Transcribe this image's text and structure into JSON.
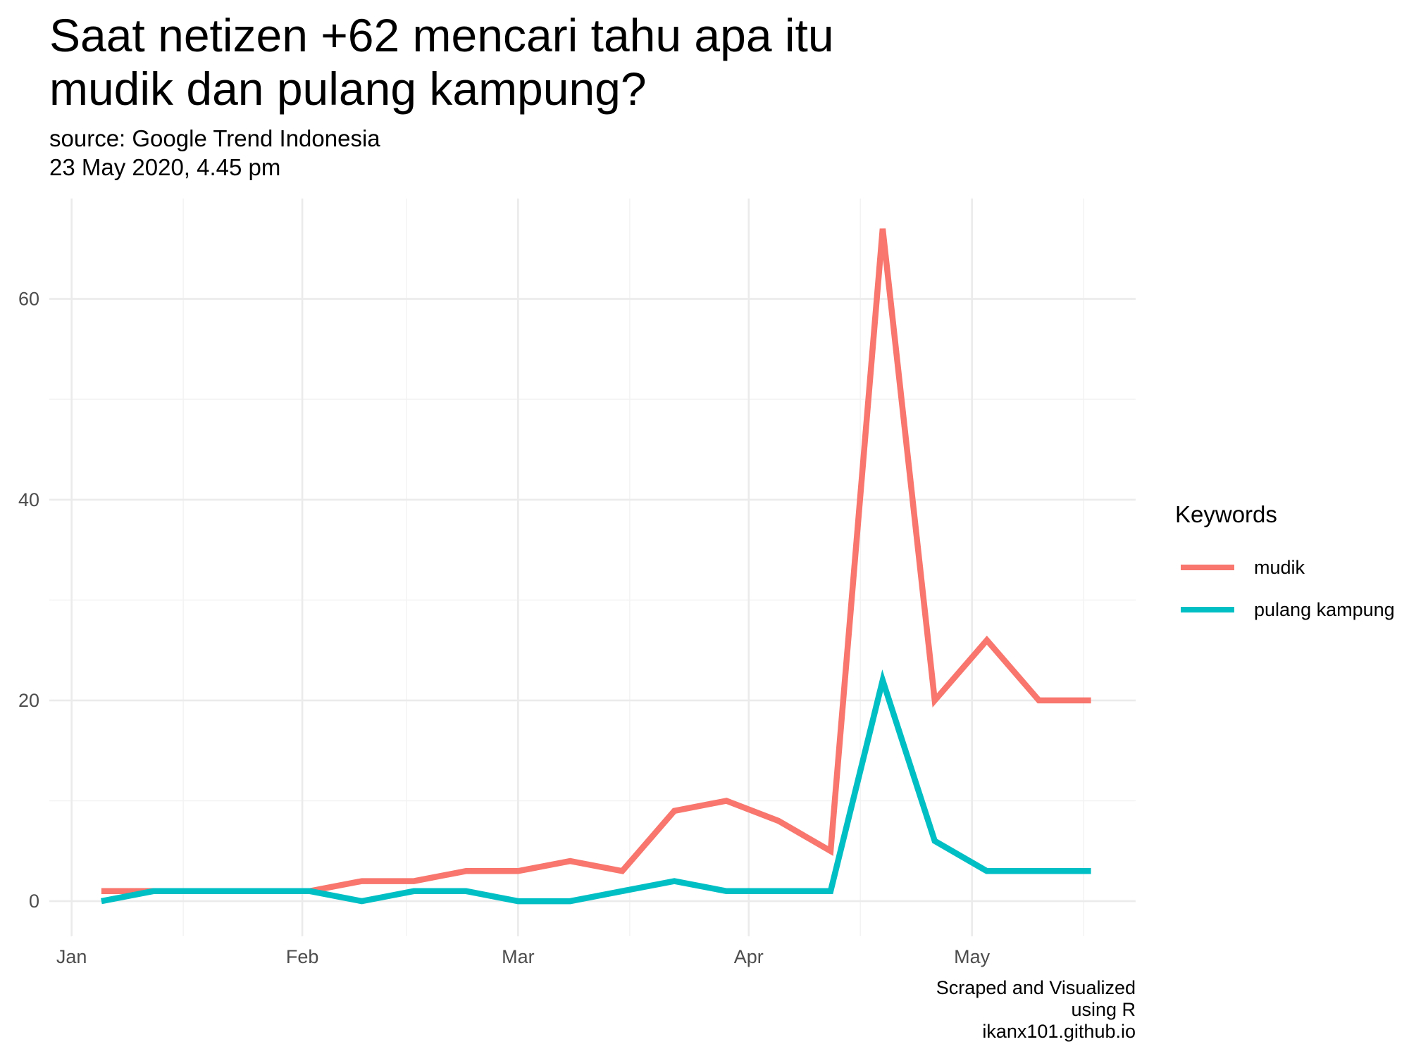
{
  "chart_data": {
    "type": "line",
    "title_lines": [
      "Saat netizen +62 mencari tahu apa itu",
      "mudik dan pulang kampung?"
    ],
    "subtitle_lines": [
      "source: Google Trend Indonesia",
      "23 May 2020, 4.45 pm"
    ],
    "caption_lines": [
      "Scraped and Visualized",
      "using R",
      "ikanx101.github.io"
    ],
    "xlabel": "",
    "ylabel": "",
    "x_ticks": [
      "Jan",
      "Feb",
      "Mar",
      "Apr",
      "May"
    ],
    "x_tick_dates": [
      "2020-01-01",
      "2020-02-01",
      "2020-03-01",
      "2020-04-01",
      "2020-05-01"
    ],
    "y_ticks": [
      0,
      20,
      40,
      60
    ],
    "xlim": [
      "2019-12-29",
      "2020-05-23"
    ],
    "ylim": [
      -3.5,
      70
    ],
    "grid": true,
    "legend_position": "right",
    "legend_title": "Keywords",
    "x": [
      "2020-01-05",
      "2020-01-12",
      "2020-01-19",
      "2020-01-26",
      "2020-02-02",
      "2020-02-09",
      "2020-02-16",
      "2020-02-23",
      "2020-03-01",
      "2020-03-08",
      "2020-03-15",
      "2020-03-22",
      "2020-03-29",
      "2020-04-05",
      "2020-04-12",
      "2020-04-19",
      "2020-04-26",
      "2020-05-03",
      "2020-05-10",
      "2020-05-17"
    ],
    "series": [
      {
        "name": "mudik",
        "color": "#F8766D",
        "values": [
          1,
          1,
          1,
          1,
          1,
          2,
          2,
          3,
          3,
          4,
          3,
          9,
          10,
          8,
          5,
          67,
          20,
          26,
          20,
          20
        ]
      },
      {
        "name": "pulang kampung",
        "color": "#00BFC4",
        "values": [
          0,
          1,
          1,
          1,
          1,
          0,
          1,
          1,
          0,
          0,
          1,
          2,
          1,
          1,
          1,
          22,
          6,
          3,
          3,
          3
        ]
      }
    ]
  }
}
